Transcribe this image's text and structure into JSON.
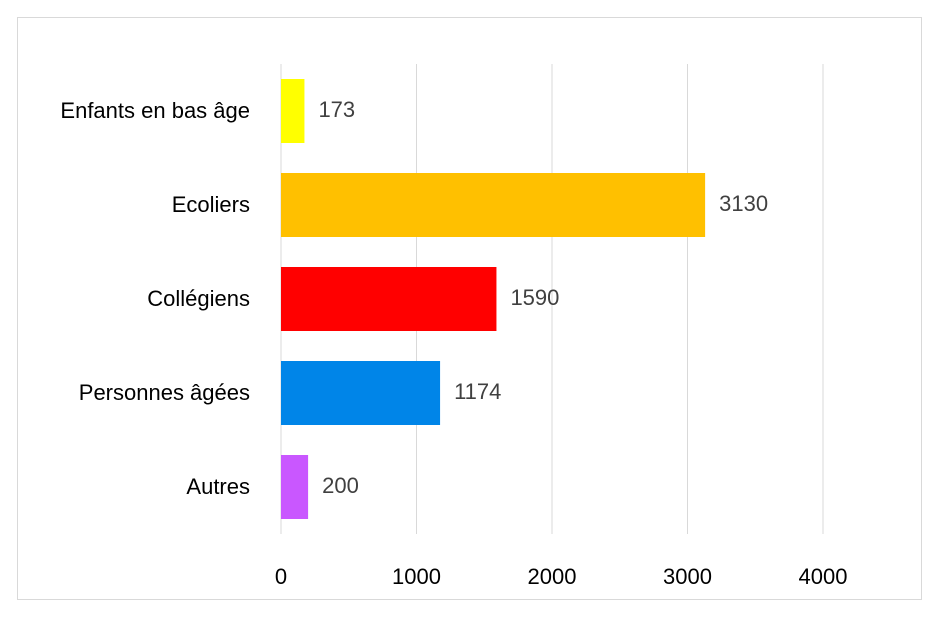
{
  "chart_data": {
    "type": "bar",
    "orientation": "horizontal",
    "categories": [
      "Enfants en bas âge",
      "Ecoliers",
      "Collégiens",
      "Personnes âgées",
      "Autres"
    ],
    "values": [
      173,
      3130,
      1590,
      1174,
      200
    ],
    "colors": [
      "#ffff00",
      "#ffc000",
      "#ff0000",
      "#0085e8",
      "#c957ff"
    ],
    "xlim": [
      0,
      4000
    ],
    "xticks": [
      0,
      1000,
      2000,
      3000,
      4000
    ],
    "grid": true
  }
}
